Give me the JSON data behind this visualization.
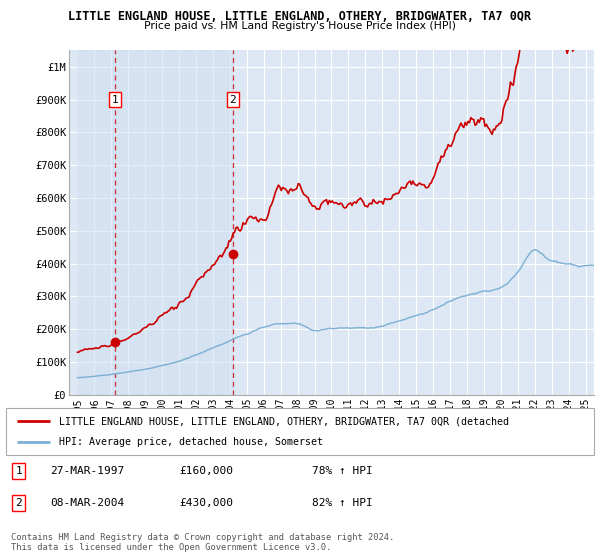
{
  "title": "LITTLE ENGLAND HOUSE, LITTLE ENGLAND, OTHERY, BRIDGWATER, TA7 0QR",
  "subtitle": "Price paid vs. HM Land Registry's House Price Index (HPI)",
  "hpi_label": "HPI: Average price, detached house, Somerset",
  "property_label": "LITTLE ENGLAND HOUSE, LITTLE ENGLAND, OTHERY, BRIDGWATER, TA7 0QR (detached",
  "legend_footer1": "Contains HM Land Registry data © Crown copyright and database right 2024.",
  "legend_footer2": "This data is licensed under the Open Government Licence v3.0.",
  "sale1_date": "27-MAR-1997",
  "sale1_price": 160000,
  "sale1_label_price": "£160,000",
  "sale1_hpi": "78% ↑ HPI",
  "sale2_date": "08-MAR-2004",
  "sale2_price": 430000,
  "sale2_label_price": "£430,000",
  "sale2_hpi": "82% ↑ HPI",
  "sale1_year": 1997.23,
  "sale2_year": 2004.18,
  "hpi_color": "#7bafd4",
  "property_color": "#cc0000",
  "marker_color": "#cc0000",
  "dashed_color": "#cc0000",
  "shade_color": "#ccddf0",
  "ylim": [
    0,
    1050000
  ],
  "xlim_start": 1994.5,
  "xlim_end": 2025.5,
  "yticks": [
    0,
    100000,
    200000,
    300000,
    400000,
    500000,
    600000,
    700000,
    800000,
    900000,
    1000000
  ],
  "ytick_labels": [
    "£0",
    "£100K",
    "£200K",
    "£300K",
    "£400K",
    "£500K",
    "£600K",
    "£700K",
    "£800K",
    "£900K",
    "£1M"
  ],
  "xticks": [
    1995,
    1996,
    1997,
    1998,
    1999,
    2000,
    2001,
    2002,
    2003,
    2004,
    2005,
    2006,
    2007,
    2008,
    2009,
    2010,
    2011,
    2012,
    2013,
    2014,
    2015,
    2016,
    2017,
    2018,
    2019,
    2020,
    2021,
    2022,
    2023,
    2024,
    2025
  ],
  "bg_color": "#dde8f4",
  "grid_color": "#ffffff",
  "label1": "1",
  "label2": "2"
}
